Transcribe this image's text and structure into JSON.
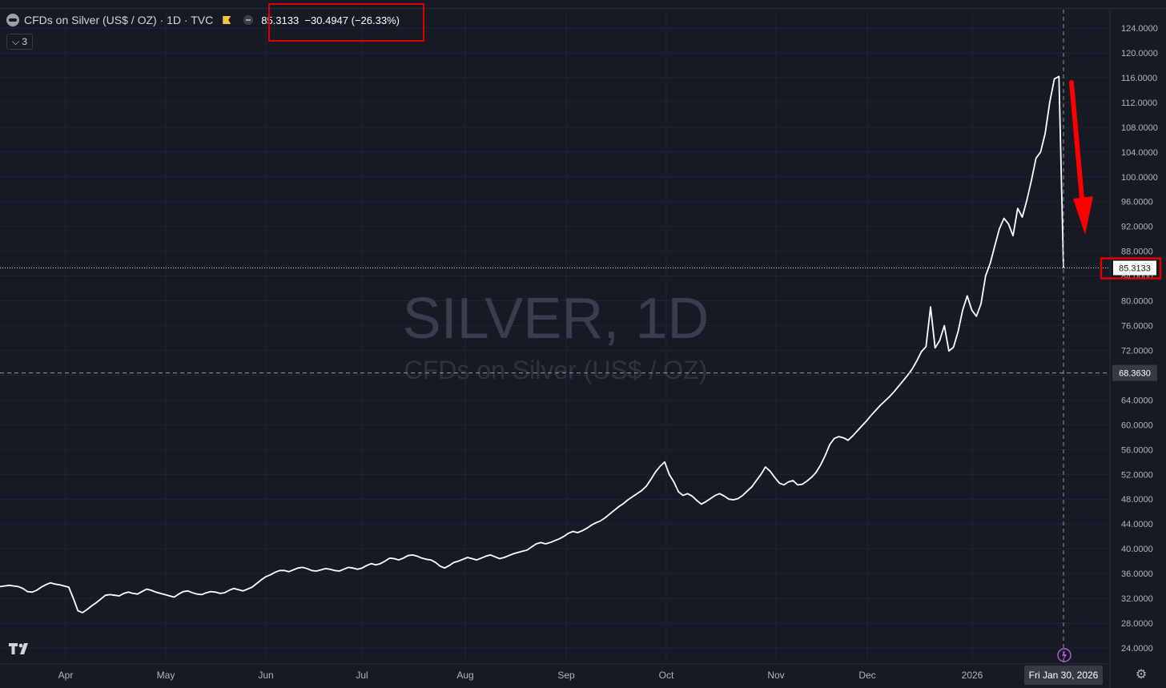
{
  "header": {
    "symbol_title": "CFDs on Silver (US$ / OZ) · 1D · TVC",
    "price_change": "85.3133  −30.4947 (−26.33%)",
    "collapse_label": "⌵ 3"
  },
  "watermark": {
    "title": "SILVER, 1D",
    "subtitle": "CFDs on Silver (US$ / OZ)"
  },
  "crosshair": {
    "price_label": "68.3630",
    "date_label": "Fri Jan 30, 2026"
  },
  "colors": {
    "background": "#161a25",
    "line": "#ffffff",
    "grid": "#232734",
    "highlight": "#e00000",
    "arrow": "#ff0000"
  },
  "chart_data": {
    "type": "line",
    "series": [
      {
        "values": [
          33.9,
          34.0,
          34.1,
          34.0,
          33.9,
          33.6,
          33.1,
          33.0,
          33.3,
          33.8,
          34.2,
          34.5,
          34.3,
          34.2,
          34.0,
          33.8,
          32.0,
          30.0,
          29.7,
          30.2,
          30.8,
          31.3,
          31.9,
          32.5,
          32.6,
          32.5,
          32.4,
          32.8,
          33.0,
          32.8,
          32.7,
          33.1,
          33.5,
          33.3,
          33.0,
          32.8,
          32.6,
          32.4,
          32.2,
          32.7,
          33.1,
          33.2,
          32.9,
          32.7,
          32.6,
          32.9,
          33.1,
          33.0,
          32.8,
          32.9,
          33.3,
          33.6,
          33.4,
          33.2,
          33.5,
          33.8,
          34.4,
          35.0,
          35.5,
          35.8,
          36.2,
          36.5,
          36.5,
          36.3,
          36.6,
          36.9,
          37.0,
          36.8,
          36.5,
          36.4,
          36.6,
          36.8,
          36.7,
          36.5,
          36.4,
          36.7,
          37.0,
          36.9,
          36.7,
          36.9,
          37.3,
          37.6,
          37.4,
          37.6,
          38.0,
          38.5,
          38.4,
          38.2,
          38.5,
          38.9,
          39.0,
          38.8,
          38.5,
          38.3,
          38.2,
          37.8,
          37.2,
          36.9,
          37.3,
          37.8,
          38.0,
          38.3,
          38.6,
          38.4,
          38.2,
          38.5,
          38.8,
          39.0,
          38.7,
          38.4,
          38.6,
          38.9,
          39.2,
          39.4,
          39.6,
          39.8,
          40.3,
          40.8,
          41.0,
          40.8,
          41.0,
          41.3,
          41.6,
          42.0,
          42.5,
          42.8,
          42.6,
          42.9,
          43.3,
          43.8,
          44.2,
          44.5,
          45.0,
          45.6,
          46.2,
          46.8,
          47.3,
          47.9,
          48.4,
          48.9,
          49.4,
          50.1,
          51.2,
          52.4,
          53.3,
          54.0,
          52.0,
          50.8,
          49.2,
          48.6,
          48.9,
          48.5,
          47.8,
          47.2,
          47.6,
          48.1,
          48.6,
          48.9,
          48.5,
          48.0,
          47.9,
          48.1,
          48.6,
          49.3,
          50.0,
          51.0,
          52.0,
          53.2,
          52.5,
          51.5,
          50.6,
          50.3,
          50.8,
          51.0,
          50.3,
          50.4,
          50.9,
          51.5,
          52.3,
          53.5,
          55.0,
          56.8,
          57.8,
          58.1,
          57.9,
          57.5,
          58.2,
          59.0,
          59.8,
          60.6,
          61.5,
          62.3,
          63.1,
          63.8,
          64.5,
          65.3,
          66.2,
          67.1,
          68.0,
          69.0,
          70.3,
          71.8,
          72.6,
          79.0,
          72.4,
          73.6,
          76.0,
          71.9,
          72.5,
          75.0,
          78.5,
          80.8,
          78.5,
          77.5,
          79.5,
          84.0,
          86.0,
          88.8,
          91.6,
          93.3,
          92.4,
          90.5,
          94.9,
          93.5,
          96.2,
          99.4,
          103.0,
          104.0,
          107.0,
          112.0,
          115.8,
          116.2,
          85.3
        ]
      }
    ],
    "x_labels": [
      "Apr",
      "May",
      "Jun",
      "Jul",
      "Aug",
      "Sep",
      "Oct",
      "Nov",
      "Dec",
      "2026"
    ],
    "y_ticks": [
      "24.0000",
      "28.0000",
      "32.0000",
      "36.0000",
      "40.0000",
      "44.0000",
      "48.0000",
      "52.0000",
      "56.0000",
      "60.0000",
      "64.0000",
      "68.0000",
      "72.0000",
      "76.0000",
      "80.0000",
      "84.0000",
      "88.0000",
      "92.0000",
      "96.0000",
      "100.0000",
      "104.0000",
      "108.0000",
      "112.0000",
      "116.0000",
      "120.0000",
      "124.0000"
    ],
    "last_price_label": "85.3133",
    "ylim": [
      22,
      126
    ]
  }
}
